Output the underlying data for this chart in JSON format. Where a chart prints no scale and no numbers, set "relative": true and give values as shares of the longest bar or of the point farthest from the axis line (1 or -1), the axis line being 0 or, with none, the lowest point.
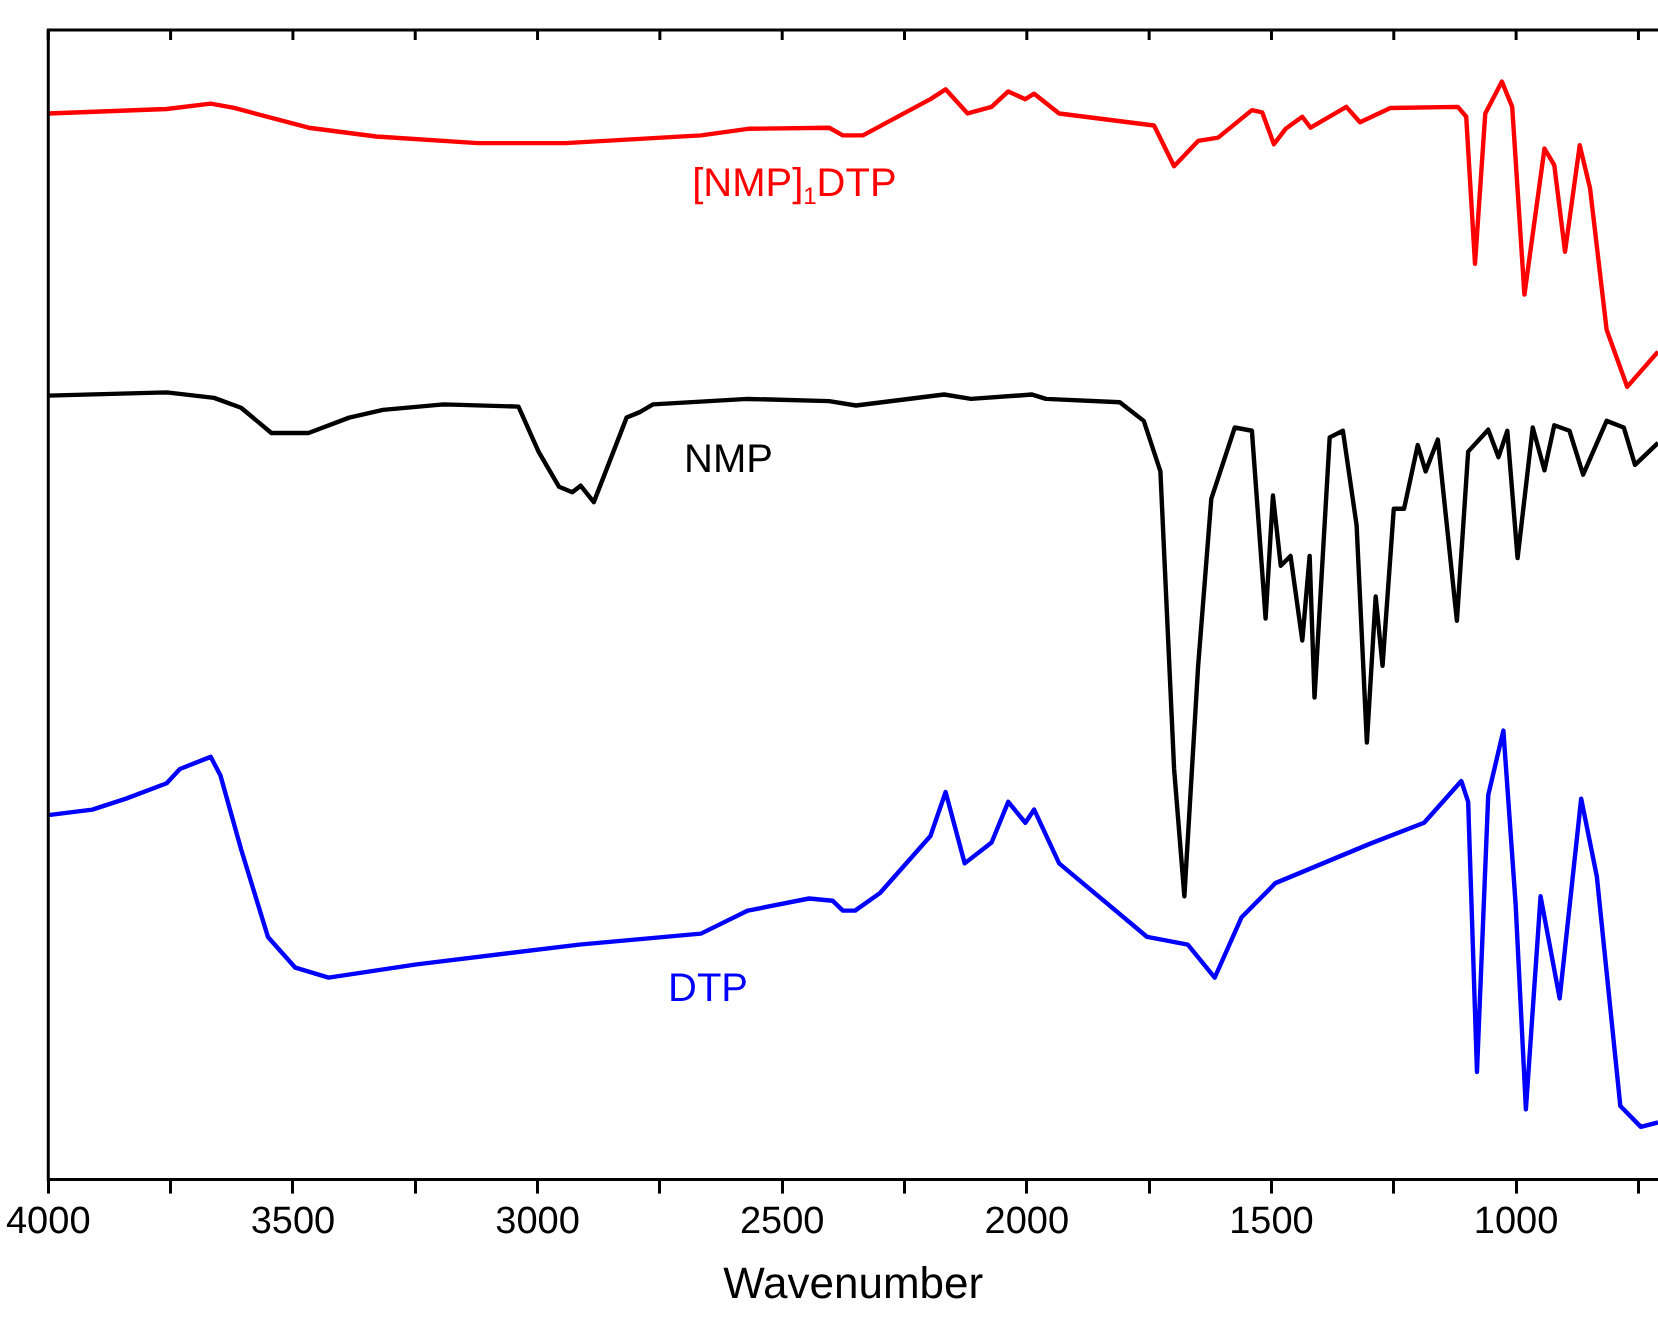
{
  "chart_data": {
    "type": "line",
    "xlabel": "Wavenumber",
    "relative": true,
    "legend": false,
    "grid": false,
    "marker": "none",
    "line_style": "solid",
    "xlim": [
      4000,
      710
    ],
    "xticks": [
      4000,
      {
        "value": 3750,
        "label": null
      },
      3500,
      {
        "value": 3250,
        "label": null
      },
      3000,
      {
        "value": 2750,
        "label": null
      },
      2500,
      {
        "value": 2250,
        "label": null
      },
      2000,
      {
        "value": 1750,
        "label": null
      },
      1500,
      {
        "value": 1250,
        "label": null
      },
      1000,
      {
        "value": 750,
        "label": null
      }
    ],
    "series": [
      {
        "name": "[NMP]$_{1}$DTP",
        "color": "#ff0000",
        "x": [
          4000,
          3758,
          3668,
          3620,
          3468,
          3330,
          3122,
          2943,
          2666,
          2570,
          2404,
          2376,
          2362,
          2335,
          2197,
          2166,
          2121,
          2072,
          2038,
          2003,
          1985,
          1934,
          1740,
          1699,
          1650,
          1609,
          1540,
          1519,
          1495,
          1471,
          1437,
          1420,
          1347,
          1319,
          1257,
          1119,
          1102,
          1084,
          1063,
          1029,
          1008,
          983,
          942,
          922,
          900,
          870,
          849,
          815,
          773,
          710
        ],
        "values": [
          0.971,
          0.975,
          0.98,
          0.976,
          0.958,
          0.95,
          0.944,
          0.944,
          0.951,
          0.957,
          0.958,
          0.951,
          0.951,
          0.951,
          0.984,
          0.993,
          0.971,
          0.977,
          0.991,
          0.984,
          0.989,
          0.971,
          0.96,
          0.923,
          0.946,
          0.949,
          0.974,
          0.972,
          0.943,
          0.957,
          0.968,
          0.958,
          0.977,
          0.963,
          0.976,
          0.977,
          0.968,
          0.834,
          0.971,
          1,
          0.977,
          0.806,
          0.939,
          0.924,
          0.845,
          0.942,
          0.903,
          0.774,
          0.722,
          0.754
        ]
      },
      {
        "name": "NMP",
        "color": "#000000",
        "x": [
          4000,
          3758,
          3661,
          3606,
          3544,
          3468,
          3385,
          3316,
          3192,
          3039,
          2998,
          2956,
          2929,
          2912,
          2885,
          2818,
          2791,
          2764,
          2570,
          2404,
          2349,
          2169,
          2114,
          1989,
          1961,
          1810,
          1761,
          1727,
          1699,
          1678,
          1650,
          1623,
          1575,
          1540,
          1512,
          1497,
          1481,
          1461,
          1437,
          1422,
          1412,
          1381,
          1354,
          1326,
          1305,
          1287,
          1273,
          1250,
          1229,
          1201,
          1185,
          1160,
          1121,
          1098,
          1057,
          1036,
          1018,
          997,
          966,
          942,
          922,
          891,
          863,
          815,
          780,
          757,
          710
        ],
        "values": [
          0.714,
          0.717,
          0.712,
          0.703,
          0.68,
          0.68,
          0.694,
          0.701,
          0.706,
          0.704,
          0.663,
          0.631,
          0.626,
          0.632,
          0.617,
          0.694,
          0.699,
          0.706,
          0.711,
          0.709,
          0.705,
          0.715,
          0.711,
          0.715,
          0.711,
          0.708,
          0.691,
          0.645,
          0.374,
          0.258,
          0.467,
          0.62,
          0.685,
          0.682,
          0.511,
          0.623,
          0.559,
          0.568,
          0.491,
          0.568,
          0.439,
          0.676,
          0.682,
          0.596,
          0.398,
          0.531,
          0.468,
          0.611,
          0.611,
          0.669,
          0.645,
          0.674,
          0.509,
          0.663,
          0.683,
          0.658,
          0.682,
          0.566,
          0.685,
          0.646,
          0.687,
          0.682,
          0.642,
          0.691,
          0.685,
          0.651,
          0.671
        ]
      },
      {
        "name": "DTP",
        "color": "#0000ff",
        "x": [
          4000,
          3910,
          3841,
          3758,
          3731,
          3668,
          3648,
          3606,
          3551,
          3495,
          3427,
          3247,
          2915,
          2666,
          2570,
          2445,
          2397,
          2376,
          2351,
          2300,
          2197,
          2166,
          2127,
          2072,
          2038,
          2003,
          1985,
          1934,
          1754,
          1671,
          1616,
          1561,
          1492,
          1298,
          1188,
          1112,
          1098,
          1080,
          1057,
          1026,
          1001,
          980,
          950,
          911,
          867,
          835,
          787,
          745,
          710
        ],
        "values": [
          0.332,
          0.337,
          0.347,
          0.361,
          0.374,
          0.385,
          0.368,
          0.301,
          0.221,
          0.193,
          0.184,
          0.196,
          0.214,
          0.224,
          0.245,
          0.256,
          0.254,
          0.245,
          0.245,
          0.261,
          0.313,
          0.353,
          0.288,
          0.307,
          0.344,
          0.325,
          0.337,
          0.288,
          0.221,
          0.214,
          0.184,
          0.239,
          0.27,
          0.306,
          0.325,
          0.363,
          0.344,
          0.098,
          0.35,
          0.409,
          0.251,
          0.064,
          0.258,
          0.165,
          0.347,
          0.276,
          0.067,
          0.048,
          0.052
        ]
      }
    ]
  }
}
